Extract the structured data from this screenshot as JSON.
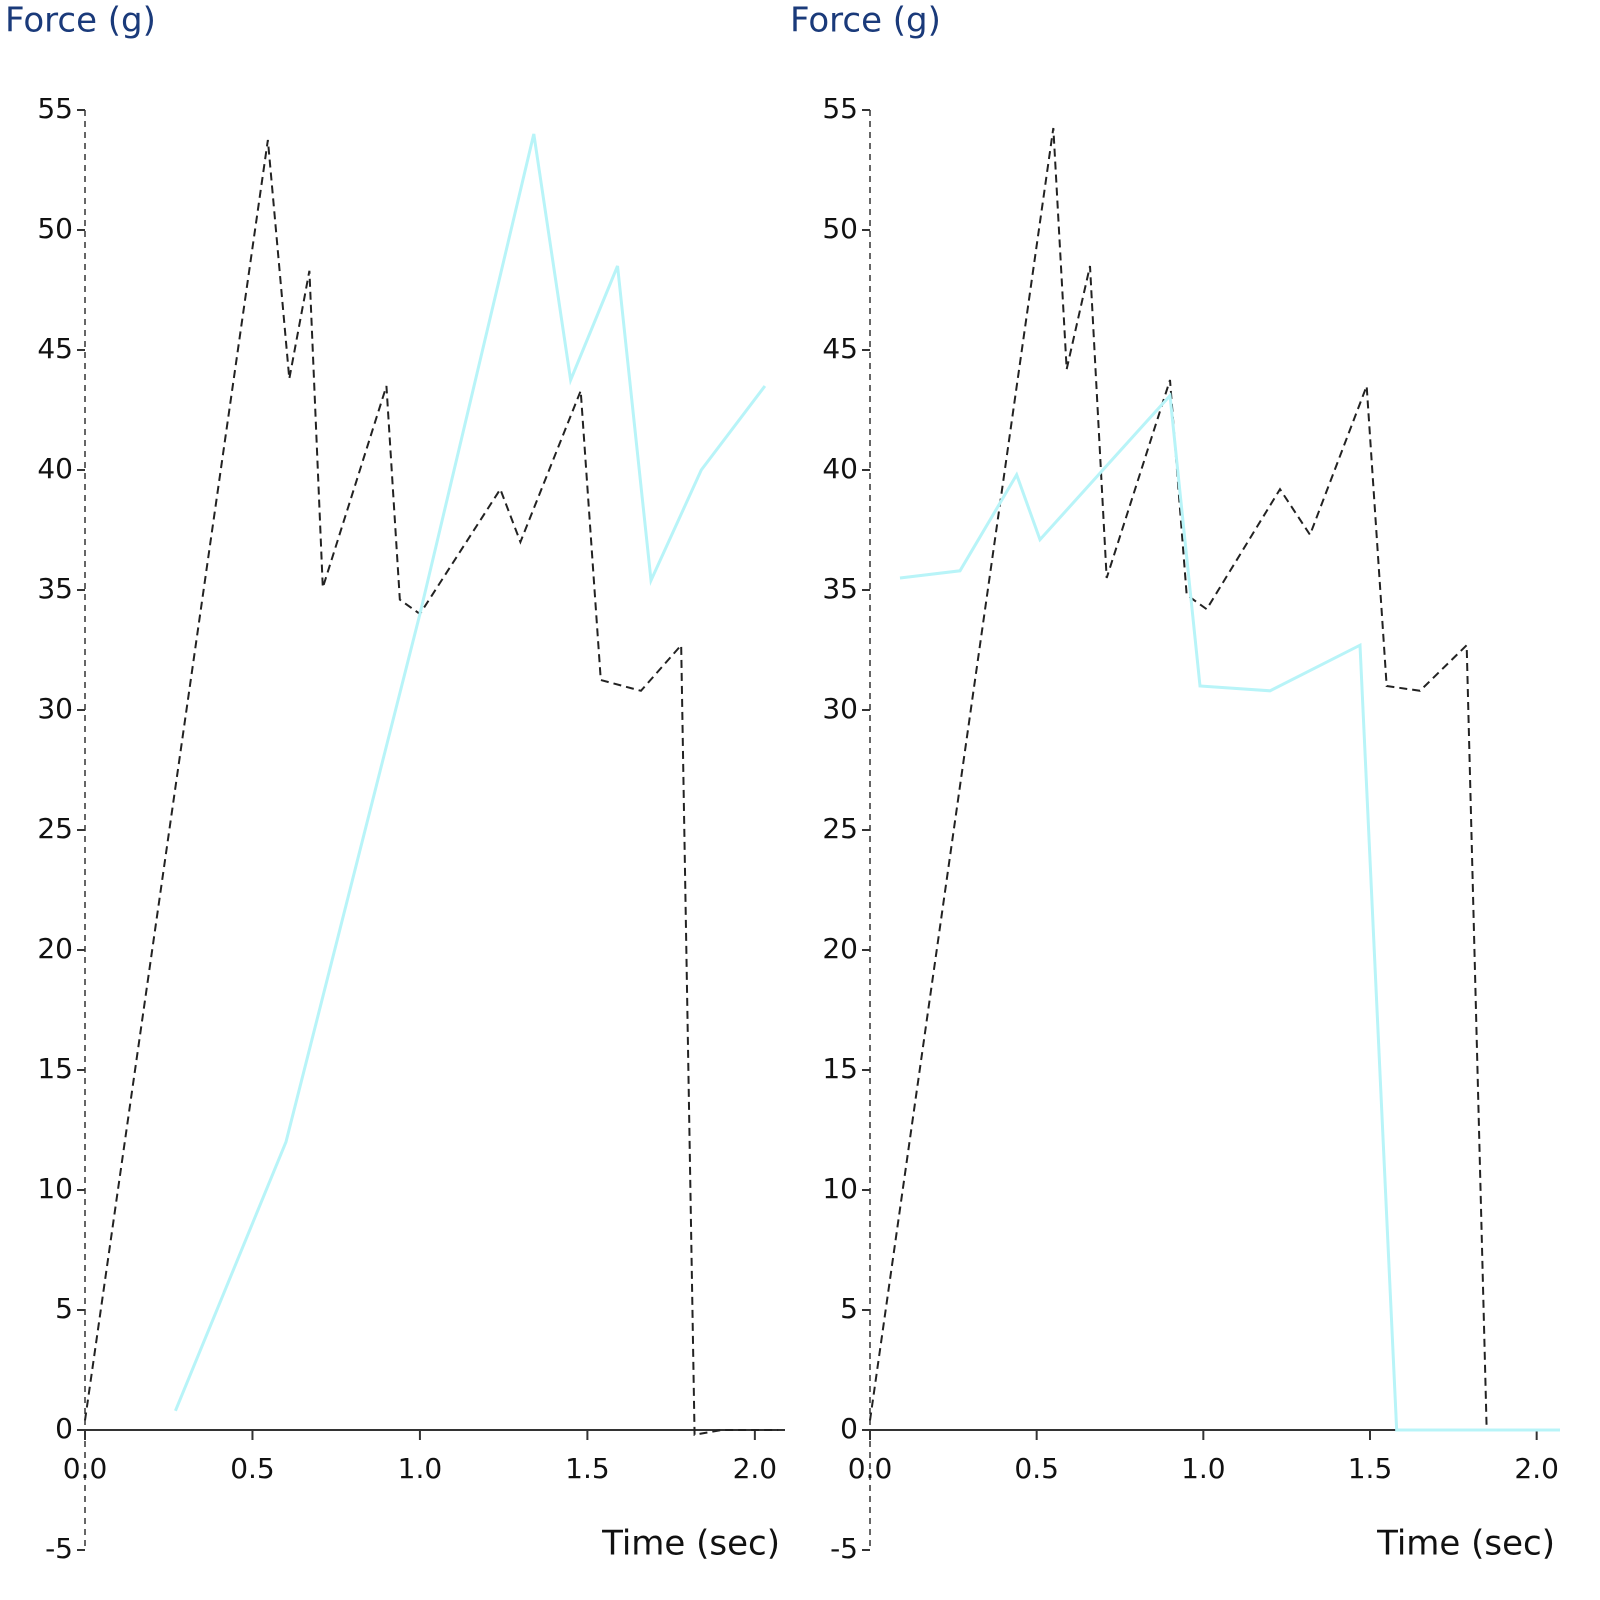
{
  "chart_data": [
    {
      "type": "line",
      "y_label": "Force (g)",
      "x_label": "Time (sec)",
      "xlim": [
        0,
        2.09
      ],
      "ylim": [
        -5,
        55
      ],
      "xticks": [
        {
          "value": 0,
          "label": "0.0"
        },
        {
          "value": 0.5,
          "label": "0.5"
        },
        {
          "value": 1,
          "label": "1.0"
        },
        {
          "value": 1.5,
          "label": "1.5"
        },
        {
          "value": 2,
          "label": "2.0"
        }
      ],
      "yticks": [
        -5,
        0,
        5,
        10,
        15,
        20,
        25,
        30,
        35,
        40,
        45,
        50,
        55
      ],
      "series": [
        {
          "color": "#222222",
          "dashed": true,
          "x": [
            0,
            0.546,
            0.61,
            0.67,
            0.71,
            0.9,
            0.94,
            1.0,
            1.24,
            1.3,
            1.48,
            1.54,
            1.66,
            1.78,
            1.82,
            1.9,
            2.07
          ],
          "values": [
            0.4,
            53.75,
            43.8,
            48.3,
            35.1,
            43.5,
            34.6,
            34,
            39.2,
            37,
            43.3,
            31.25,
            30.8,
            32.7,
            -0.2,
            0,
            0
          ]
        },
        {
          "color": "#b8f4f8",
          "dashed": false,
          "x": [
            0.27,
            0.6,
            1.0,
            1.34,
            1.45,
            1.59,
            1.69,
            1.84,
            2.03
          ],
          "values": [
            0.8,
            12,
            34,
            54,
            43.75,
            48.5,
            35.4,
            40,
            43.5
          ]
        }
      ]
    },
    {
      "type": "line",
      "y_label": "Force (g)",
      "x_label": "Time (sec)",
      "xlim": [
        0,
        2.07
      ],
      "ylim": [
        -5,
        55
      ],
      "xticks": [
        {
          "value": 0,
          "label": "0.0"
        },
        {
          "value": 0.5,
          "label": "0.5"
        },
        {
          "value": 1,
          "label": "1.0"
        },
        {
          "value": 1.5,
          "label": "1.5"
        },
        {
          "value": 2,
          "label": "2.0"
        }
      ],
      "yticks": [
        -5,
        0,
        5,
        10,
        15,
        20,
        25,
        30,
        35,
        40,
        45,
        50,
        55
      ],
      "series": [
        {
          "color": "#222222",
          "dashed": true,
          "x": [
            0,
            0.55,
            0.59,
            0.66,
            0.71,
            0.9,
            0.95,
            1.01,
            1.23,
            1.32,
            1.49,
            1.55,
            1.65,
            1.79,
            1.85,
            2.07
          ],
          "values": [
            0.4,
            54.25,
            44.2,
            48.5,
            35.5,
            43.75,
            34.8,
            34.2,
            39.2,
            37.3,
            43.5,
            31,
            30.8,
            32.7,
            0,
            0
          ]
        },
        {
          "color": "#b8f4f8",
          "dashed": false,
          "x": [
            0.09,
            0.27,
            0.44,
            0.51,
            0.9,
            0.99,
            1.2,
            1.47,
            1.58,
            2.07
          ],
          "values": [
            35.5,
            35.8,
            39.8,
            37.1,
            43.1,
            31,
            30.8,
            32.7,
            0,
            0
          ]
        }
      ]
    }
  ]
}
